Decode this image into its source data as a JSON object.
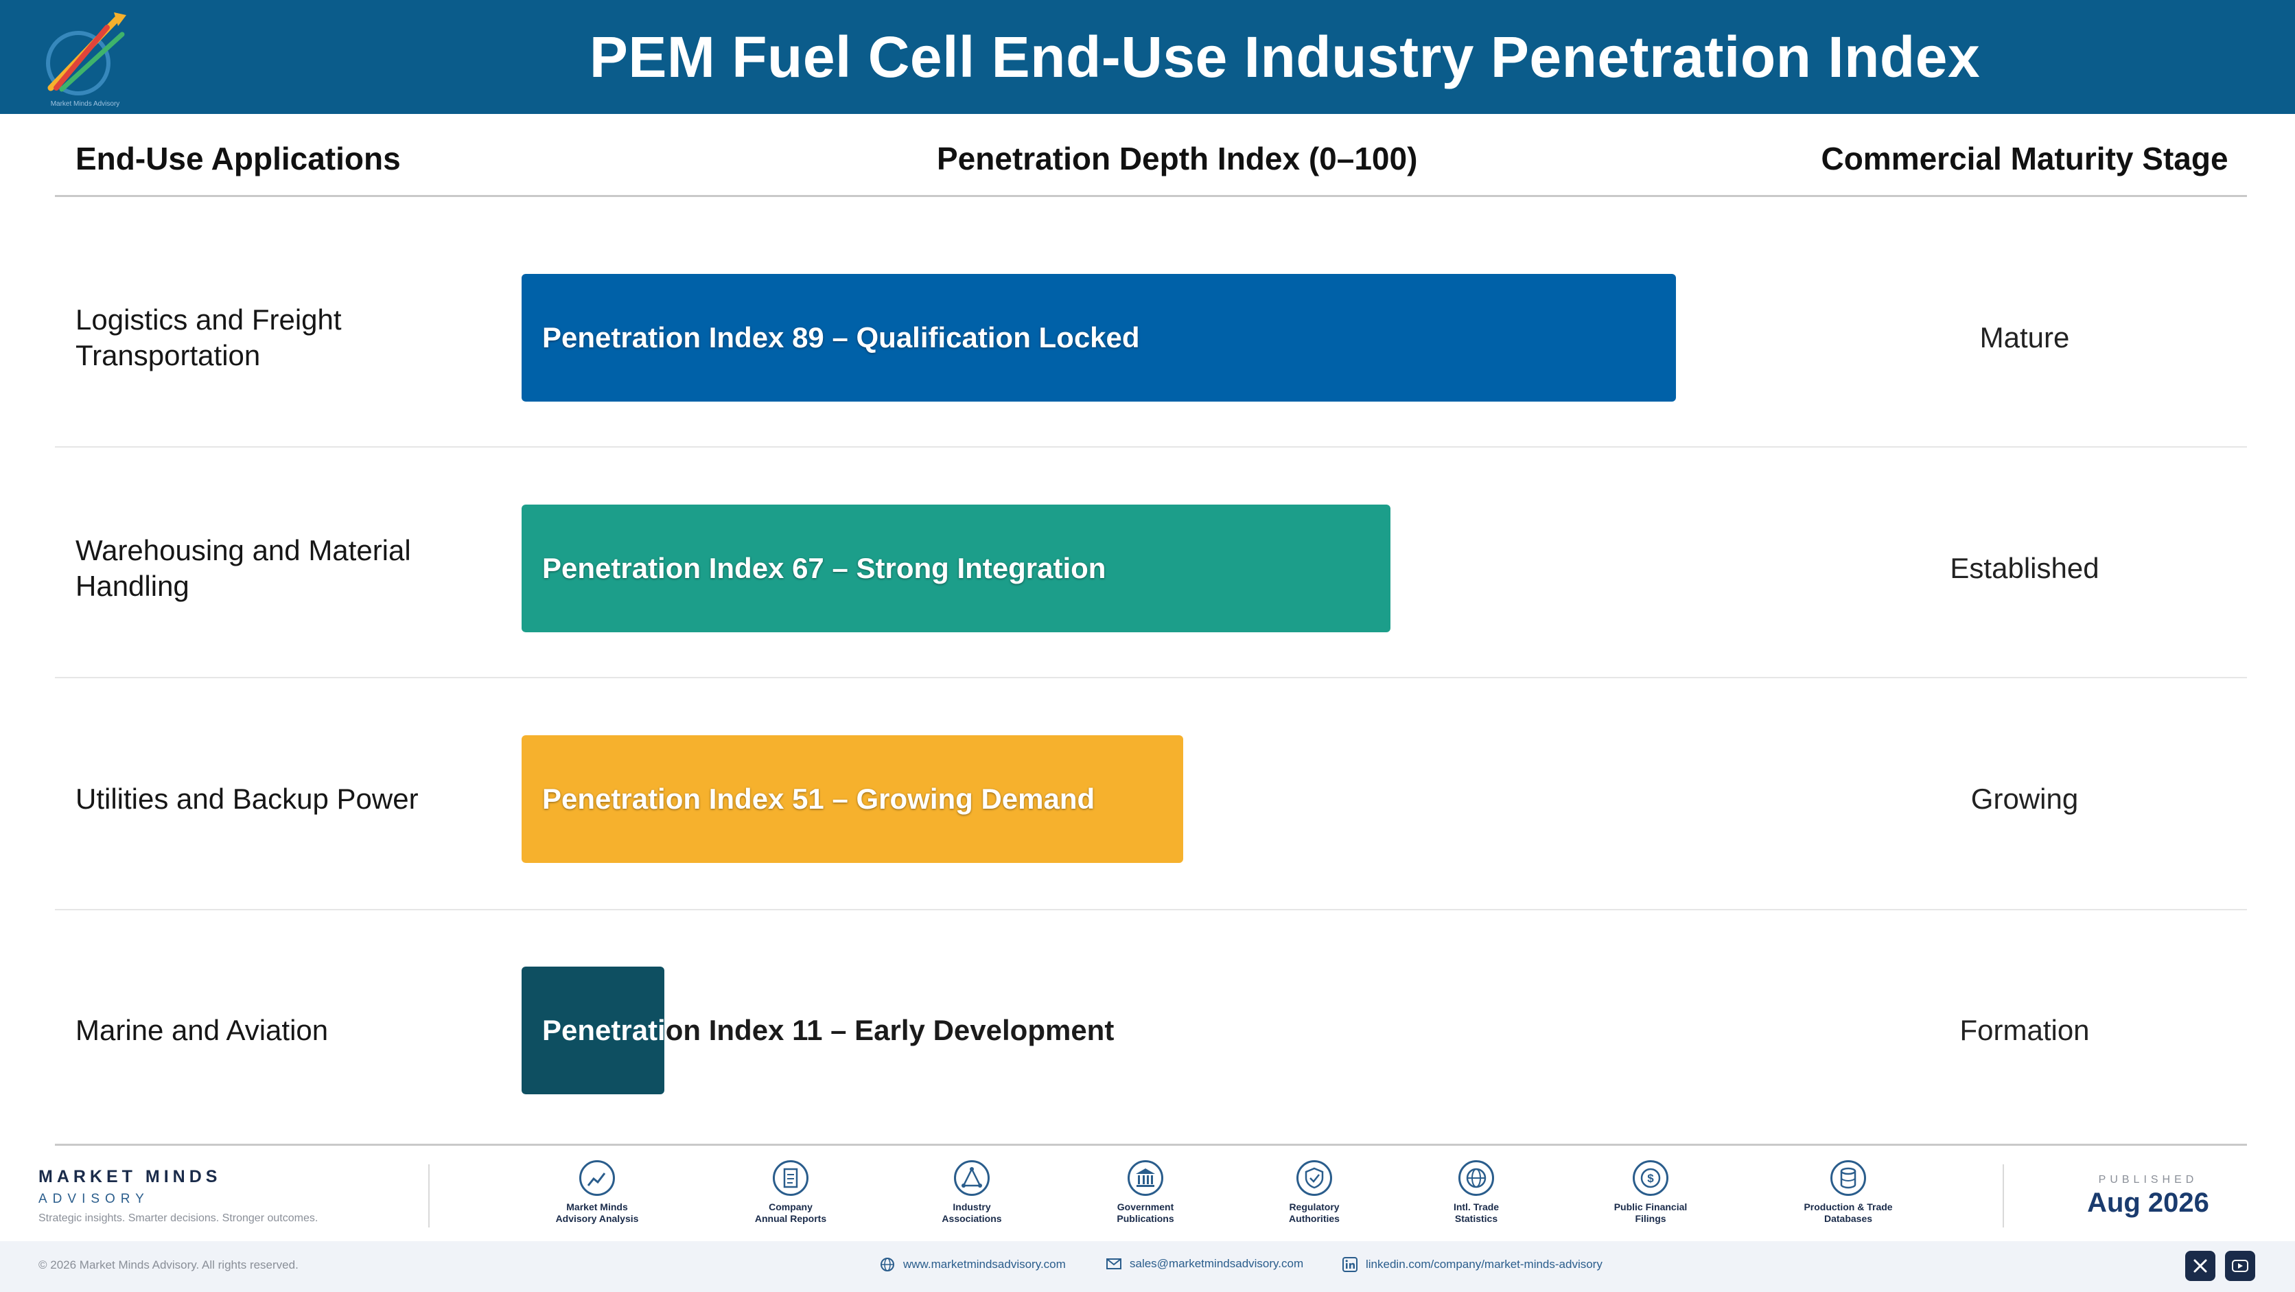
{
  "header": {
    "title": "PEM Fuel Cell End-Use Industry Penetration Index",
    "logo_caption": "Market Minds Advisory"
  },
  "columns": {
    "applications": "End-Use Applications",
    "index": "Penetration Depth Index (0–100)",
    "stage": "Commercial Maturity Stage"
  },
  "chart_data": {
    "type": "bar",
    "orientation": "horizontal",
    "title": "PEM Fuel Cell End-Use Industry Penetration Index",
    "xlabel": "Penetration Depth Index (0–100)",
    "xlim": [
      0,
      100
    ],
    "categories": [
      "Logistics and Freight Transportation",
      "Warehousing and Material Handling",
      "Utilities and Backup Power",
      "Marine and Aviation"
    ],
    "values": [
      89,
      67,
      51,
      11
    ],
    "bar_labels": [
      "Penetration Index 89 – Qualification Locked",
      "Penetration Index 67 – Strong Integration",
      "Penetration Index 51 – Growing Demand",
      "Penetration Index 11 – Early Development"
    ],
    "stages": [
      "Mature",
      "Established",
      "Growing",
      "Formation"
    ],
    "colors": [
      "#0061a8",
      "#1c9e8a",
      "#f6b12d",
      "#0e4f61"
    ]
  },
  "footer": {
    "brand_name": "MARKET MINDS",
    "brand_sub": "ADVISORY",
    "tagline": "Strategic insights. Smarter decisions. Stronger outcomes.",
    "sources": [
      {
        "line1": "Market Minds",
        "line2": "Advisory Analysis",
        "icon": "trend-chart-icon"
      },
      {
        "line1": "Company",
        "line2": "Annual Reports",
        "icon": "document-icon"
      },
      {
        "line1": "Industry",
        "line2": "Associations",
        "icon": "network-icon"
      },
      {
        "line1": "Government",
        "line2": "Publications",
        "icon": "government-building-icon"
      },
      {
        "line1": "Regulatory",
        "line2": "Authorities",
        "icon": "shield-check-icon"
      },
      {
        "line1": "Intl. Trade",
        "line2": "Statistics",
        "icon": "globe-icon"
      },
      {
        "line1": "Public Financial",
        "line2": "Filings",
        "icon": "dollar-coin-icon"
      },
      {
        "line1": "Production & Trade",
        "line2": "Databases",
        "icon": "database-icon"
      }
    ],
    "published_label": "PUBLISHED",
    "published_date": "Aug 2026",
    "copyright": "© 2026 Market Minds Advisory. All rights reserved.",
    "website": "www.marketmindsadvisory.com",
    "email": "sales@marketmindsadvisory.com",
    "linkedin": "linkedin.com/company/market-minds-advisory"
  }
}
